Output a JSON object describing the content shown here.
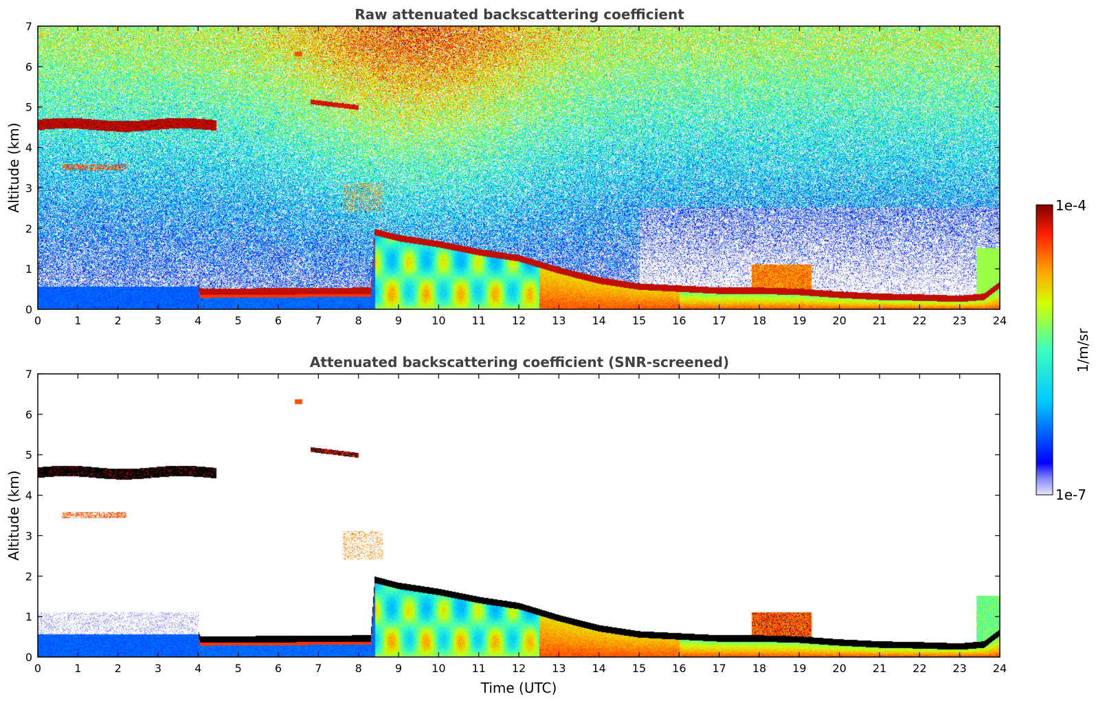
{
  "chart_data": [
    {
      "type": "heatmap",
      "title": "Raw attenuated backscattering coefficient",
      "xlabel": "",
      "ylabel": "Altitude (km)",
      "xlim": [
        0,
        24
      ],
      "ylim": [
        0,
        7
      ],
      "xticks": [
        "0",
        "1",
        "2",
        "3",
        "4",
        "5",
        "6",
        "7",
        "8",
        "9",
        "10",
        "11",
        "12",
        "13",
        "14",
        "15",
        "16",
        "17",
        "18",
        "19",
        "20",
        "21",
        "22",
        "23",
        "24"
      ],
      "yticks": [
        "0",
        "1",
        "2",
        "3",
        "4",
        "5",
        "6",
        "7"
      ],
      "screened": false,
      "features": [
        {
          "name": "cirrus layer",
          "start_h": 0.0,
          "end_h": 4.4,
          "altitude_km": 4.55
        },
        {
          "name": "elevated aerosol layer",
          "start_h": 6.8,
          "end_h": 8.0,
          "altitude_km": 5.1
        },
        {
          "name": "residual layer top",
          "start_h": 8.4,
          "end_h": 24.0,
          "altitude_start_km": 1.9,
          "altitude_end_km": 0.25
        }
      ]
    },
    {
      "type": "heatmap",
      "title": "Attenuated backscattering coefficient (SNR-screened)",
      "xlabel": "Time (UTC)",
      "ylabel": "Altitude (km)",
      "xlim": [
        0,
        24
      ],
      "ylim": [
        0,
        7
      ],
      "xticks": [
        "0",
        "1",
        "2",
        "3",
        "4",
        "5",
        "6",
        "7",
        "8",
        "9",
        "10",
        "11",
        "12",
        "13",
        "14",
        "15",
        "16",
        "17",
        "18",
        "19",
        "20",
        "21",
        "22",
        "23",
        "24"
      ],
      "yticks": [
        "0",
        "1",
        "2",
        "3",
        "4",
        "5",
        "6",
        "7"
      ],
      "screened": true
    }
  ],
  "colorbar": {
    "label": "1/m/sr",
    "max_label": "1e-4",
    "min_label": "1e-7",
    "range": [
      1e-07,
      0.0001
    ],
    "scale": "log",
    "colormap": "jet"
  }
}
